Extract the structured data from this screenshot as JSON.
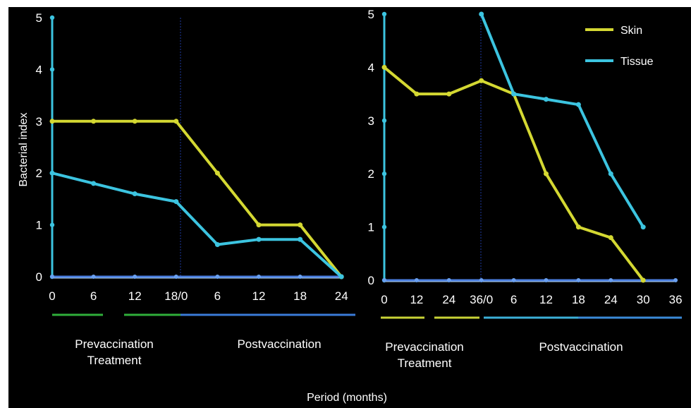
{
  "figure": {
    "ylabel": "Bacterial index",
    "xlabel": "Period (months)"
  },
  "legend": [
    {
      "name": "Skin",
      "color": "#d4d832"
    },
    {
      "name": "Tissue",
      "color": "#3cc4e0"
    }
  ],
  "chart_data": [
    {
      "type": "line",
      "panel": "left",
      "x_tick_labels": [
        "0",
        "6",
        "12",
        "18/0",
        "6",
        "12",
        "18",
        "24"
      ],
      "y_ticks": [
        0,
        1,
        2,
        3,
        4,
        5
      ],
      "ylim": [
        0,
        5
      ],
      "phase_labels": [
        "Prevaccination",
        "Treatment",
        "Postvaccination"
      ],
      "series": [
        {
          "color": "#d4d832",
          "values": [
            3,
            3,
            3,
            3,
            2,
            1,
            1,
            0
          ]
        },
        {
          "color": "#3cc4e0",
          "values": [
            2,
            1.8,
            1.6,
            1.45,
            0.62,
            0.72,
            0.72,
            0
          ]
        }
      ]
    },
    {
      "type": "line",
      "panel": "right",
      "x_tick_labels": [
        "0",
        "12",
        "24",
        "36/0",
        "6",
        "12",
        "18",
        "24",
        "30",
        "36"
      ],
      "y_ticks": [
        0,
        1,
        2,
        3,
        4,
        5
      ],
      "ylim": [
        0,
        5
      ],
      "phase_labels": [
        "Prevaccination",
        "Treatment",
        "Postvaccination"
      ],
      "series": [
        {
          "name": "Skin",
          "color": "#d4d832",
          "values": [
            4,
            3.5,
            3.5,
            3.75,
            3.5,
            2,
            1,
            0.8,
            0,
            null
          ]
        },
        {
          "name": "Tissue",
          "color": "#3cc4e0",
          "values": [
            null,
            null,
            null,
            5,
            3.5,
            3.4,
            3.3,
            2,
            1,
            null
          ]
        }
      ]
    }
  ]
}
